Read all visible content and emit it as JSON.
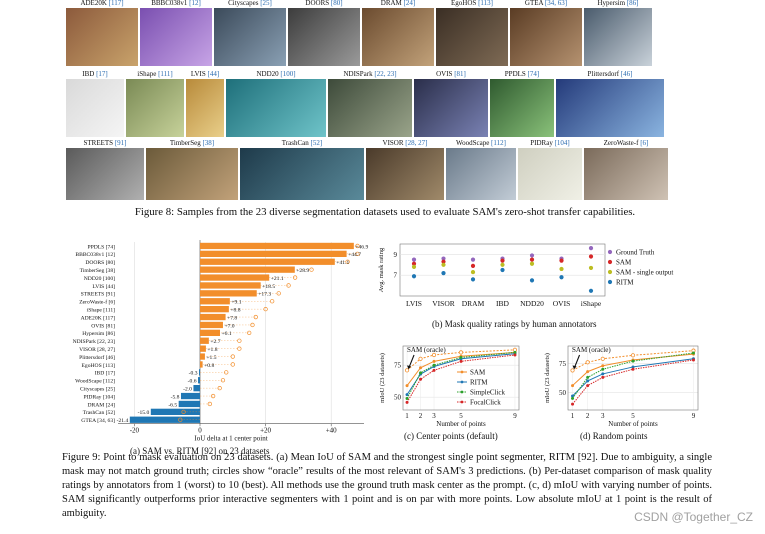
{
  "fig8": {
    "caption": "Figure 8: Samples from the 23 diverse segmentation datasets used to evaluate SAM's zero-shot transfer capabilities.",
    "rows": [
      [
        {
          "name": "ADE20K",
          "ref": "[117]"
        },
        {
          "name": "BBBC038v1",
          "ref": "[12]"
        },
        {
          "name": "Cityscapes",
          "ref": "[25]"
        },
        {
          "name": "DOORS",
          "ref": "[80]"
        },
        {
          "name": "DRAM",
          "ref": "[24]"
        },
        {
          "name": "EgoHOS",
          "ref": "[113]"
        },
        {
          "name": "GTEA",
          "ref": "[34, 63]"
        },
        {
          "name": "Hypersim",
          "ref": "[86]"
        }
      ],
      [
        {
          "name": "IBD",
          "ref": "[17]"
        },
        {
          "name": "iShape",
          "ref": "[111]"
        },
        {
          "name": "LVIS",
          "ref": "[44]"
        },
        {
          "name": "NDD20",
          "ref": "[100]"
        },
        {
          "name": "NDISPark",
          "ref": "[22, 23]"
        },
        {
          "name": "OVIS",
          "ref": "[81]"
        },
        {
          "name": "PPDLS",
          "ref": "[74]"
        },
        {
          "name": "Plittersdorf",
          "ref": "[46]"
        }
      ],
      [
        {
          "name": "STREETS",
          "ref": "[91]"
        },
        {
          "name": "TimberSeg",
          "ref": "[38]"
        },
        {
          "name": "TrashCan",
          "ref": "[52]"
        },
        {
          "name": "VISOR",
          "ref": "[28, 27]"
        },
        {
          "name": "WoodScape",
          "ref": "[112]"
        },
        {
          "name": "PIDRay",
          "ref": "[104]"
        },
        {
          "name": "ZeroWaste-f",
          "ref": "[6]"
        }
      ]
    ]
  },
  "fig9": {
    "sub_a": "(a) SAM vs. RITM [92] on 23 datasets",
    "sub_b": "(b) Mask quality ratings by human annotators",
    "sub_c": "(c) Center points (default)",
    "sub_d": "(d) Random points",
    "caption": "Figure 9: Point to mask evaluation on 23 datasets. (a) Mean IoU of SAM and the strongest single point segmenter, RITM [92]. Due to ambiguity, a single mask may not match ground truth; circles show “oracle” results of the most relevant of SAM's 3 predictions. (b) Per-dataset comparison of mask quality ratings by annotators from 1 (worst) to 10 (best). All methods use the ground truth mask center as the prompt. (c, d) mIoU with varying number of points. SAM significantly outperforms prior interactive segmenters with 1 point and is on par with more points. Low absolute mIoU at 1 point is the result of ambiguity."
  },
  "watermark": "CSDN @Together_CZ",
  "colors": {
    "orange": "#f28e2b",
    "blue": "#1f77b4",
    "green": "#2ca02c",
    "red": "#d62728",
    "purple": "#9467bd",
    "olive": "#bcbd22",
    "teal": "#17becf"
  },
  "chart_data": [
    {
      "type": "bar",
      "xlabel": "IoU delta at 1 center point",
      "xlim": [
        -25,
        50
      ],
      "xticks": [
        -20,
        0,
        20,
        40
      ],
      "categories": [
        "PPDLS [74]",
        "BBBC038v1 [12]",
        "DOORS [80]",
        "TimberSeg [38]",
        "NDD20 [100]",
        "LVIS [44]",
        "STREETS [91]",
        "ZeroWaste-f [6]",
        "iShape [111]",
        "ADE20K [117]",
        "OVIS [81]",
        "Hypersim [86]",
        "NDISPark [22, 23]",
        "VISOR [28, 27]",
        "Plittersdorf [46]",
        "EgoHOS [113]",
        "IBD [17]",
        "WoodScape [112]",
        "Cityscapes [25]",
        "PIDRay [104]",
        "DRAM [24]",
        "TrashCan [52]",
        "GTEA [34, 63]"
      ],
      "values": [
        46.9,
        44.7,
        41.1,
        28.9,
        21.1,
        18.5,
        17.3,
        9.1,
        8.8,
        7.8,
        7.0,
        6.1,
        2.7,
        1.8,
        1.5,
        0.8,
        -0.3,
        -0.6,
        -2.0,
        -5.8,
        -6.5,
        -15.0,
        -21.4
      ],
      "labels": [
        "+46.9",
        "+44.7",
        "+41.1",
        "+28.9",
        "+21.1",
        "+18.5",
        "+17.3",
        "+9.1",
        "+8.8",
        "+7.8",
        "+7.0",
        "+6.1",
        "+2.7",
        "+1.8",
        "+1.5",
        "+0.8",
        "-0.3",
        "-0.6",
        "-2.0",
        "-5.8",
        "-6.5",
        "-15.0",
        "-21.4"
      ],
      "oracle": [
        48,
        48,
        45,
        34,
        29,
        27,
        24,
        22,
        20,
        17,
        16,
        15,
        12,
        12,
        10,
        10,
        8,
        7,
        6,
        4,
        3,
        -5,
        -6
      ]
    },
    {
      "type": "scatter",
      "ylabel": "Avg. mask rating",
      "ylim": [
        5,
        10
      ],
      "yticks": [
        7,
        9
      ],
      "categories": [
        "LVIS",
        "VISOR",
        "DRAM",
        "IBD",
        "NDD20",
        "OVIS",
        "iShape"
      ],
      "series": [
        {
          "name": "Ground Truth",
          "color": "#9467bd",
          "values": [
            8.5,
            8.6,
            8.5,
            8.6,
            8.9,
            8.6,
            9.6
          ]
        },
        {
          "name": "SAM",
          "color": "#d62728",
          "values": [
            8.1,
            8.3,
            7.9,
            8.4,
            8.5,
            8.4,
            8.8
          ]
        },
        {
          "name": "SAM - single output",
          "color": "#bcbd22",
          "values": [
            7.8,
            8.0,
            7.3,
            8.0,
            8.1,
            7.6,
            7.7
          ]
        },
        {
          "name": "RITM",
          "color": "#1f77b4",
          "values": [
            6.9,
            7.2,
            6.6,
            7.5,
            6.5,
            6.8,
            5.5
          ]
        }
      ]
    },
    {
      "type": "line",
      "title": "(c) Center points (default)",
      "xlabel": "Number of points",
      "ylabel": "mIoU (23 datasets)",
      "annotation": "SAM (oracle)",
      "x": [
        1,
        2,
        3,
        5,
        9
      ],
      "xticks": [
        1,
        2,
        3,
        5,
        9
      ],
      "yticks": [
        50,
        75
      ],
      "ylim": [
        40,
        90
      ],
      "series": [
        {
          "name": "SAM (oracle)",
          "color": "#f28e2b",
          "values": [
            71,
            80,
            83,
            85,
            87
          ]
        },
        {
          "name": "SAM",
          "color": "#f28e2b",
          "values": [
            59,
            73,
            78,
            82,
            85
          ]
        },
        {
          "name": "RITM",
          "color": "#1f77b4",
          "values": [
            52,
            68,
            74,
            80,
            84
          ]
        },
        {
          "name": "SimpleClick",
          "color": "#2ca02c",
          "values": [
            49,
            69,
            75,
            81,
            85
          ]
        },
        {
          "name": "FocalClick",
          "color": "#d62728",
          "values": [
            46,
            64,
            71,
            78,
            83
          ]
        }
      ]
    },
    {
      "type": "line",
      "title": "(d) Random points",
      "xlabel": "Number of points",
      "ylabel": "mIoU (23 datasets)",
      "annotation": "SAM (oracle)",
      "x": [
        1,
        2,
        3,
        5,
        9
      ],
      "xticks": [
        1,
        2,
        3,
        5,
        9
      ],
      "yticks": [
        50,
        75
      ],
      "ylim": [
        35,
        90
      ],
      "series": [
        {
          "name": "SAM (oracle)",
          "color": "#f28e2b",
          "values": [
            69,
            76,
            79,
            82,
            86
          ]
        },
        {
          "name": "SAM",
          "color": "#f28e2b",
          "values": [
            56,
            68,
            73,
            78,
            83
          ]
        },
        {
          "name": "RITM",
          "color": "#1f77b4",
          "values": [
            47,
            60,
            66,
            72,
            79
          ]
        },
        {
          "name": "SimpleClick",
          "color": "#2ca02c",
          "values": [
            45,
            63,
            70,
            77,
            84
          ]
        },
        {
          "name": "FocalClick",
          "color": "#d62728",
          "values": [
            40,
            56,
            63,
            70,
            78
          ]
        }
      ]
    }
  ]
}
